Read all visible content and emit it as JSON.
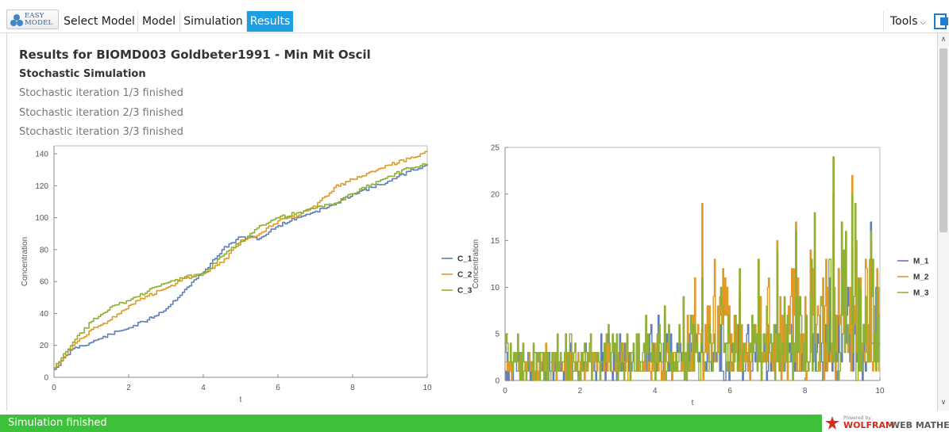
{
  "app": {
    "logo_text_line1": "EASY",
    "logo_text_line2": "MODEL"
  },
  "tabs": [
    {
      "label": "Select Model"
    },
    {
      "label": "Model"
    },
    {
      "label": "Simulation"
    },
    {
      "label": "Results",
      "active": true
    }
  ],
  "tools_label": "Tools",
  "results": {
    "title": "Results for BIOMD003 Goldbeter1991 - Min Mit Oscil",
    "subtitle": "Stochastic Simulation",
    "log": [
      "Stochastic iteration 1/3 finished",
      "Stochastic iteration 2/3 finished",
      "Stochastic iteration 3/3 finished"
    ]
  },
  "status": "Simulation finished",
  "wolfram": {
    "powered": "Powered by",
    "brand": "WOLFRAM",
    "product": "WEB MATHEMATICA"
  },
  "colors": {
    "series1": "#5f7fb8",
    "series2": "#e19a27",
    "series3": "#8fb032",
    "accent_tab": "#1e9fe1",
    "status_green": "#3ec13a"
  },
  "chart_data": [
    {
      "type": "line",
      "title": "",
      "xlabel": "t",
      "ylabel": "Concentration",
      "xlim": [
        0,
        10
      ],
      "ylim": [
        0,
        145
      ],
      "xticks": [
        0,
        2,
        4,
        6,
        8,
        10
      ],
      "yticks": [
        0,
        20,
        40,
        60,
        80,
        100,
        120,
        140
      ],
      "legend_position": "right",
      "step": true,
      "series": [
        {
          "name": "C_1",
          "x": [
            0,
            0.5,
            1,
            1.5,
            2,
            2.5,
            3,
            3.5,
            4,
            4.5,
            5,
            5.5,
            6,
            6.5,
            7,
            7.5,
            8,
            8.5,
            9,
            9.5,
            10
          ],
          "y": [
            5,
            18,
            22,
            27,
            31,
            36,
            43,
            55,
            66,
            80,
            88,
            87,
            95,
            100,
            104,
            108,
            115,
            119,
            123,
            129,
            133
          ]
        },
        {
          "name": "C_2",
          "x": [
            0,
            0.5,
            1,
            1.5,
            2,
            2.5,
            3,
            3.5,
            4,
            4.5,
            5,
            5.5,
            6,
            6.5,
            7,
            7.5,
            8,
            8.5,
            9,
            9.5,
            10
          ],
          "y": [
            6,
            20,
            30,
            36,
            45,
            51,
            56,
            62,
            65,
            72,
            86,
            90,
            98,
            101,
            107,
            119,
            124,
            129,
            133,
            137,
            141
          ]
        },
        {
          "name": "C_3",
          "x": [
            0,
            0.5,
            1,
            1.5,
            2,
            2.5,
            3,
            3.5,
            4,
            4.5,
            5,
            5.5,
            6,
            6.5,
            7,
            7.5,
            8,
            8.5,
            9,
            9.5,
            10
          ],
          "y": [
            6,
            22,
            35,
            44,
            48,
            54,
            59,
            63,
            65,
            76,
            85,
            95,
            100,
            103,
            106,
            109,
            115,
            121,
            126,
            131,
            134
          ]
        }
      ]
    },
    {
      "type": "line",
      "title": "",
      "xlabel": "t",
      "ylabel": "Concentration",
      "xlim": [
        0,
        10
      ],
      "ylim": [
        0,
        25
      ],
      "xticks": [
        0,
        2,
        4,
        6,
        8,
        10
      ],
      "yticks": [
        0,
        5,
        10,
        15,
        20,
        25
      ],
      "legend_position": "right",
      "series": [
        {
          "name": "M_1",
          "x": [
            0,
            0.5,
            1,
            1.5,
            2,
            2.5,
            3,
            3.5,
            4,
            4.5,
            5,
            5.5,
            6,
            6.5,
            7,
            7.5,
            8,
            8.5,
            9,
            9.5,
            10
          ],
          "y": [
            1,
            2,
            3,
            2,
            4,
            3,
            5,
            4,
            6,
            7,
            5,
            8,
            6,
            9,
            7,
            10,
            12,
            9,
            16,
            14,
            17
          ]
        },
        {
          "name": "M_2",
          "x": [
            0,
            0.5,
            1,
            1.5,
            2,
            2.5,
            3,
            3.5,
            4,
            4.5,
            5,
            5.5,
            6,
            6.5,
            7,
            7.5,
            8,
            8.5,
            9,
            9.5,
            10
          ],
          "y": [
            1,
            2,
            2,
            3,
            3,
            4,
            4,
            5,
            5,
            6,
            7,
            19,
            9,
            10,
            13,
            15,
            17,
            14,
            20,
            22,
            15
          ]
        },
        {
          "name": "M_3",
          "x": [
            0,
            0.5,
            1,
            1.5,
            2,
            2.5,
            3,
            3.5,
            4,
            4.5,
            5,
            5.5,
            6,
            6.5,
            7,
            7.5,
            8,
            8.5,
            9,
            9.5,
            10
          ],
          "y": [
            6,
            2,
            4,
            3,
            5,
            4,
            6,
            5,
            7,
            8,
            9,
            11,
            10,
            12,
            13,
            14,
            16,
            18,
            24,
            20,
            16
          ]
        }
      ]
    }
  ]
}
